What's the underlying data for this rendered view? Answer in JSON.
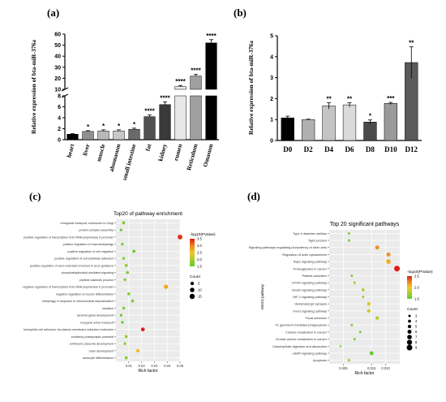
{
  "panels": {
    "a": "(a)",
    "b": "(b)",
    "c": "(c)",
    "d": "(d)"
  },
  "chart_data": [
    {
      "type": "bar",
      "ylabel": "Relative expression of bta-miR-376a",
      "ylim_low": [
        0,
        8
      ],
      "ylim_high": [
        10,
        60
      ],
      "yticks_low": [
        0,
        2,
        4,
        6,
        8
      ],
      "yticks_high": [
        10,
        20,
        30,
        40,
        50,
        60
      ],
      "categories": [
        "heart",
        "liver",
        "muscle",
        "abomasum",
        "small intestine",
        "fat",
        "kidney",
        "rumen",
        "Reticulum",
        "Omasum"
      ],
      "values": [
        1.0,
        1.5,
        1.6,
        1.6,
        1.9,
        4.2,
        6.4,
        12.5,
        22.0,
        52.0
      ],
      "errors": [
        0.1,
        0.15,
        0.2,
        0.2,
        0.2,
        0.3,
        0.5,
        1.0,
        1.5,
        3.0
      ],
      "labels": [
        "",
        "*",
        "*",
        "*",
        "*",
        "****",
        "****",
        "****",
        "****",
        "****"
      ],
      "colors": [
        "#000000",
        "#909090",
        "#b8b8b8",
        "#c8c8c8",
        "#6a6a6a",
        "#505050",
        "#3a3a3a",
        "#e8e8e8",
        "#a0a0a0",
        "#000000"
      ]
    },
    {
      "type": "bar",
      "ylabel": "Relative expression of bta-miR-376a",
      "ylim": [
        0,
        5
      ],
      "yticks": [
        0,
        1,
        2,
        3,
        4,
        5
      ],
      "categories": [
        "D0",
        "D2",
        "D4",
        "D6",
        "D8",
        "D10",
        "D12"
      ],
      "values": [
        1.08,
        1.0,
        1.65,
        1.7,
        0.88,
        1.77,
        3.72
      ],
      "errors": [
        0.08,
        0.02,
        0.15,
        0.1,
        0.1,
        0.05,
        0.75
      ],
      "labels": [
        "",
        "",
        "**",
        "**",
        "*",
        "***",
        "**"
      ],
      "colors": [
        "#000000",
        "#b0b0b0",
        "#c4c4c4",
        "#dadada",
        "#4a4a4a",
        "#9a9a9a",
        "#5a5a5a"
      ]
    },
    {
      "type": "scatter",
      "title": "Top20 of pathway enrichment",
      "xlabel": "Rich factor",
      "xlim": [
        0,
        0.05
      ],
      "xticks": [
        0.01,
        0.02,
        0.03,
        0.04,
        0.05
      ],
      "color_legend_title": "-log10(PValue)",
      "color_range": [
        1.5,
        3.5
      ],
      "color_ticks": [
        3.5,
        3.0,
        2.5,
        2.0,
        1.5
      ],
      "size_legend_title": "Count",
      "size_ticks": [
        5,
        10,
        15
      ],
      "pathways": [
        "retrograde transport, endosome to Golgi",
        "protein complex assembly",
        "positive regulation of transcription from RNA polymerase II promoter",
        "positive regulation of macroautophagy",
        "positive regulation of cell migration",
        "positive regulation of cell-substrate adhesion",
        "positive regulation of axon extension involved in axon guidance",
        "phosphatidylinositol-mediated signaling",
        "peptide catabolic process",
        "negative regulation of transcription from RNA polymerase II promoter",
        "negative regulation of neuron differentiation",
        "mitophagy in response to mitochondrial depolarization",
        "lactation",
        "lacrimal gland development",
        "inorganic anion transport",
        "homophilic cell adhesion via plasma membrane adhesion molecules",
        "excitatory postsynaptic potential",
        "embryonic placenta development",
        "brain development",
        "astrocyte differentiation"
      ],
      "rich": [
        0.006,
        0.004,
        0.05,
        0.005,
        0.014,
        0.006,
        0.008,
        0.009,
        0.007,
        0.039,
        0.01,
        0.013,
        0.006,
        0.004,
        0.005,
        0.021,
        0.008,
        0.007,
        0.017,
        0.008
      ],
      "pvalue": [
        1.7,
        1.5,
        3.4,
        1.6,
        1.5,
        1.7,
        1.8,
        1.7,
        1.6,
        2.7,
        1.8,
        1.7,
        1.6,
        1.5,
        1.5,
        3.5,
        1.9,
        1.8,
        2.6,
        1.8
      ],
      "count": [
        3,
        2,
        12,
        2,
        3,
        2,
        3,
        3,
        2,
        9,
        3,
        3,
        2,
        2,
        2,
        6,
        3,
        2,
        5,
        3
      ]
    },
    {
      "type": "scatter",
      "title": "Top 20 significant pathways",
      "xlabel": "Rich factor",
      "ylabel": "KEGG pathway",
      "xlim": [
        0,
        0.025
      ],
      "xticks": [
        0.005,
        0.015,
        0.02
      ],
      "xtick_labels": [
        "0.005",
        "0.015",
        "0.020"
      ],
      "color_legend_title": "-log10(PValue)",
      "color_range": [
        1.5,
        2.5
      ],
      "color_ticks": [
        2.5,
        2.0,
        1.5
      ],
      "size_legend_title": "Count",
      "size_ticks": [
        3,
        4,
        5,
        6,
        7,
        8,
        9
      ],
      "pathways": [
        "Type II diabetes mellitus",
        "Tight junction",
        "Signaling pathways regulating pluripotency of stem cells",
        "Regulation of actin cytoskeleton",
        "Rap1 signaling pathway",
        "Proteoglycans in cancer",
        "Platelet activation",
        "mTOR signaling pathway",
        "Insulin signaling pathway",
        "HIF-1 signaling pathway",
        "Glutamatergic synapse",
        "FoxO signaling pathway",
        "Focal adhesion",
        "Fc gamma R-mediated phagocytosis",
        "Choline metabolism in cancer",
        "Central carbon metabolism in cancer",
        "Carbohydrate digestion and absorption",
        "cAMP signaling pathway",
        "Apoptosis"
      ],
      "rich": [
        0.007,
        0.007,
        0.017,
        0.021,
        0.021,
        0.024,
        0.008,
        0.009,
        0.012,
        0.012,
        0.014,
        0.014,
        0.017,
        0.008,
        0.011,
        0.009,
        0.004,
        0.015,
        0.007
      ],
      "pvalue": [
        1.6,
        1.6,
        2.2,
        2.2,
        2.1,
        2.5,
        1.6,
        1.7,
        1.8,
        1.7,
        1.9,
        1.9,
        1.8,
        1.6,
        1.6,
        1.6,
        1.5,
        1.5,
        1.6
      ],
      "count": [
        3,
        3,
        6,
        6,
        7,
        9,
        3,
        3,
        4,
        3,
        5,
        5,
        5,
        3,
        3,
        3,
        2,
        6,
        3
      ]
    }
  ]
}
